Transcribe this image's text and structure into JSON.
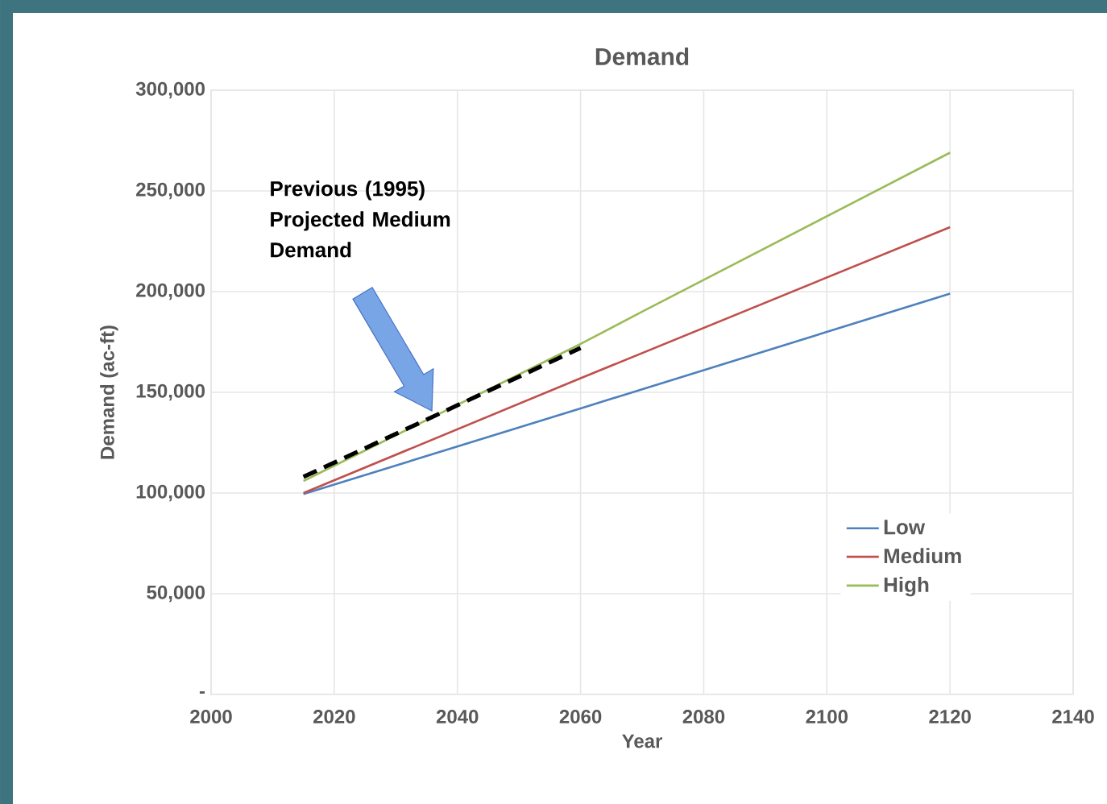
{
  "chart_data": {
    "type": "line",
    "title": "Demand",
    "xlabel": "Year",
    "ylabel": "Demand (ac-ft)",
    "xlim": [
      2000,
      2140
    ],
    "xticks": [
      2000,
      2020,
      2040,
      2060,
      2080,
      2100,
      2120,
      2140
    ],
    "ylim": [
      0,
      300000
    ],
    "yticks": [
      {
        "value": 0,
        "label": "-"
      },
      {
        "value": 50000,
        "label": "50,000"
      },
      {
        "value": 100000,
        "label": "100,000"
      },
      {
        "value": 150000,
        "label": "150,000"
      },
      {
        "value": 200000,
        "label": "200,000"
      },
      {
        "value": 250000,
        "label": "250,000"
      },
      {
        "value": 300000,
        "label": "300,000"
      }
    ],
    "grid": true,
    "legend": "bottom right",
    "annotations": [
      "Previous (1995) Projected Medium Demand"
    ],
    "series": [
      {
        "name": "Low",
        "color": "#4f81bd",
        "x": [
          2015,
          2060,
          2120
        ],
        "values": [
          99500,
          142000,
          199000
        ]
      },
      {
        "name": "Medium",
        "color": "#c0504d",
        "x": [
          2015,
          2060,
          2120
        ],
        "values": [
          100000,
          157000,
          232000
        ]
      },
      {
        "name": "High",
        "color": "#9bbb59",
        "x": [
          2015,
          2060,
          2070,
          2120
        ],
        "values": [
          106000,
          174000,
          190000,
          269000
        ]
      },
      {
        "color": "#000000",
        "line_style": "dashed",
        "x": [
          2015,
          2060
        ],
        "values": [
          108000,
          172000
        ]
      }
    ]
  }
}
